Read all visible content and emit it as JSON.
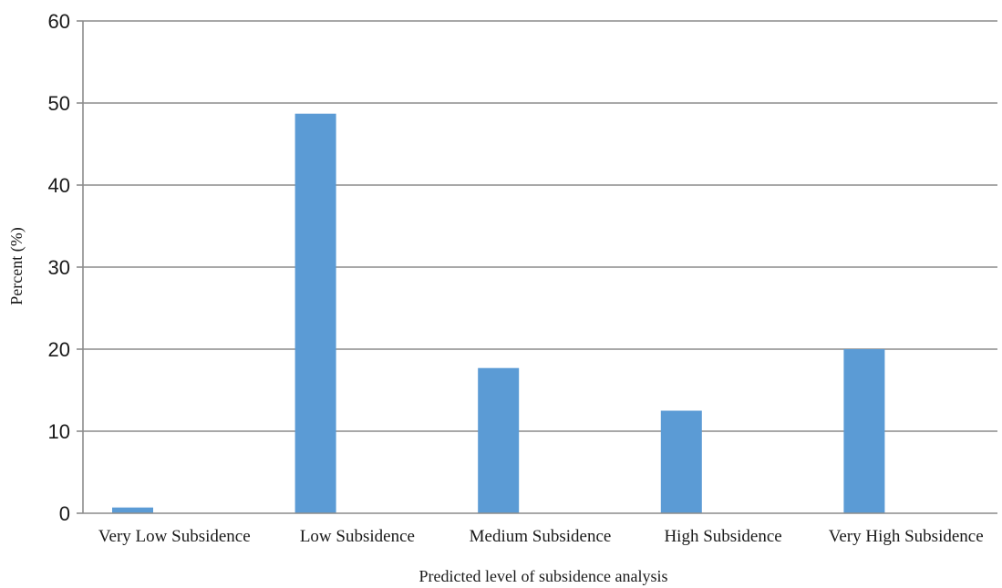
{
  "chart_data": {
    "type": "bar",
    "title": "",
    "xlabel": "Predicted level of subsidence analysis",
    "ylabel": "Percent (%)",
    "categories": [
      "Very Low Subsidence",
      "Low Subsidence",
      "Medium Subsidence",
      "High Subsidence",
      "Very High Subsidence"
    ],
    "values": [
      0.7,
      48.7,
      17.7,
      12.5,
      20.0
    ],
    "ylim": [
      0,
      60
    ],
    "yticks": [
      "0",
      "10",
      "20",
      "30",
      "40",
      "50",
      "60"
    ],
    "grid": true,
    "legend": "none",
    "bar_color": "#5b9bd5"
  }
}
